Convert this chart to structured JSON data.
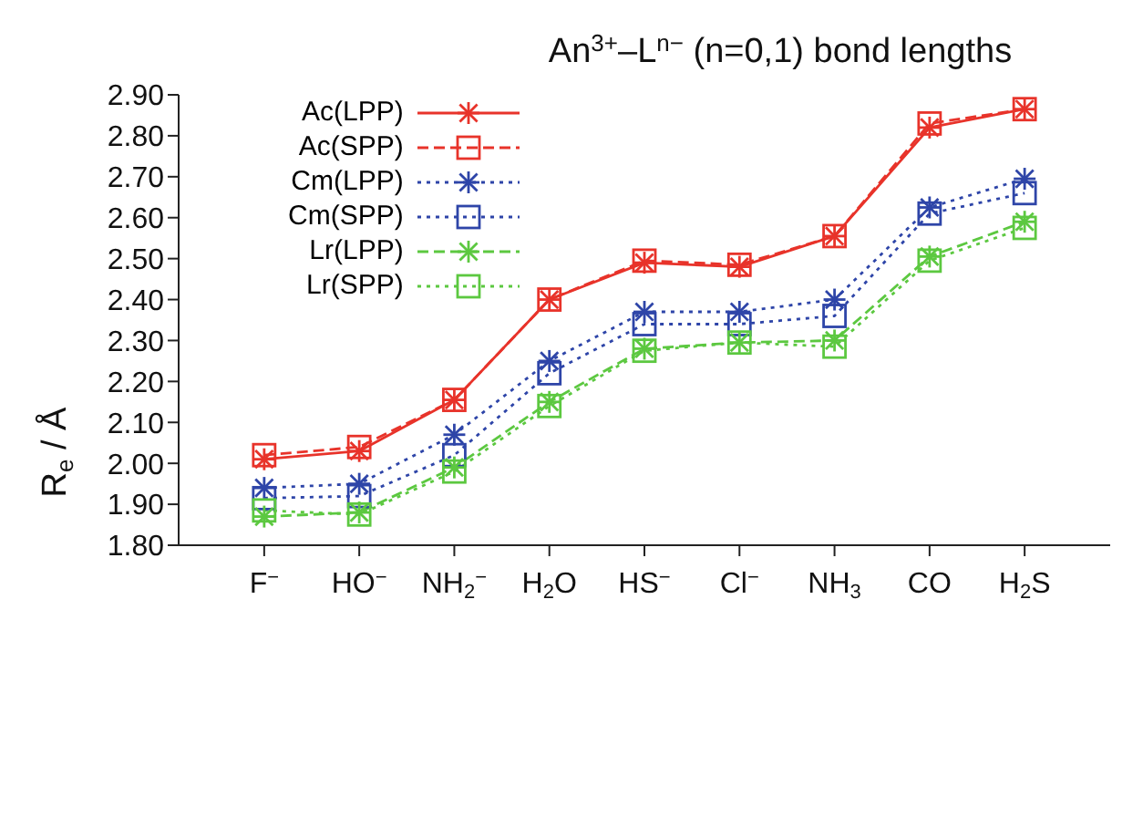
{
  "chart_data": {
    "type": "line",
    "title": "An$^{3+}$–L$^{n−}$ (n=0,1) bond lengths",
    "ylabel": "R$_{e}$ / Å",
    "categories": [
      "F$^{−}$",
      "HO$^{−}$",
      "NH$_{2}$$^{−}$",
      "H$_{2}$O",
      "HS$^{−}$",
      "Cl$^{−}$",
      "NH$_{3}$",
      "CO",
      "H$_{2}$S"
    ],
    "series": [
      {
        "name": "Ac(LPP)",
        "color": "#e8332a",
        "marker": "cross",
        "line_style": "solid",
        "values": [
          2.01,
          2.03,
          2.155,
          2.4,
          2.49,
          2.48,
          2.555,
          2.82,
          2.865
        ]
      },
      {
        "name": "Ac(SPP)",
        "color": "#e8332a",
        "marker": "square",
        "line_style": "dashed",
        "values": [
          2.02,
          2.04,
          2.155,
          2.4,
          2.495,
          2.485,
          2.555,
          2.83,
          2.865
        ]
      },
      {
        "name": "Cm(LPP)",
        "color": "#2e45a8",
        "marker": "cross",
        "line_style": "dotted",
        "values": [
          1.94,
          1.95,
          2.07,
          2.25,
          2.37,
          2.37,
          2.4,
          2.625,
          2.695
        ]
      },
      {
        "name": "Cm(SPP)",
        "color": "#2e45a8",
        "marker": "square",
        "line_style": "dotted",
        "values": [
          1.915,
          1.92,
          2.02,
          2.22,
          2.34,
          2.34,
          2.36,
          2.61,
          2.66
        ]
      },
      {
        "name": "Lr(LPP)",
        "color": "#5cc840",
        "marker": "cross",
        "line_style": "dashed",
        "values": [
          1.87,
          1.88,
          1.99,
          2.15,
          2.28,
          2.295,
          2.3,
          2.505,
          2.59
        ]
      },
      {
        "name": "Lr(SPP)",
        "color": "#5cc840",
        "marker": "square",
        "line_style": "dotted",
        "values": [
          1.885,
          1.875,
          1.98,
          2.14,
          2.275,
          2.295,
          2.285,
          2.495,
          2.575
        ]
      }
    ],
    "ylim": [
      1.8,
      2.9
    ],
    "yticks": [
      {
        "value": 1.8,
        "label": "1.80"
      },
      {
        "value": 1.9,
        "label": "1.90"
      },
      {
        "value": 2.0,
        "label": "2.00"
      },
      {
        "value": 2.1,
        "label": "2.10"
      },
      {
        "value": 2.2,
        "label": "2.20"
      },
      {
        "value": 2.3,
        "label": "2.30"
      },
      {
        "value": 2.4,
        "label": "2.40"
      },
      {
        "value": 2.5,
        "label": "2.50"
      },
      {
        "value": 2.6,
        "label": "2.60"
      },
      {
        "value": 2.7,
        "label": "2.70"
      },
      {
        "value": 2.8,
        "label": "2.80"
      },
      {
        "value": 2.9,
        "label": "2.90"
      }
    ],
    "grid": false,
    "legend": "top left"
  }
}
